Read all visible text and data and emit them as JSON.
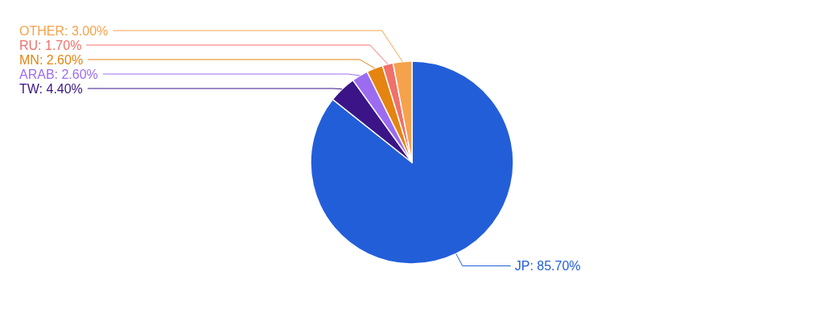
{
  "chart_data": {
    "type": "pie",
    "categories": [
      "JP: 85.70%",
      "TW: 4.40%",
      "ARAB: 2.60%",
      "MN: 2.60%",
      "RU: 1.70%",
      "OTHER: 3.00%"
    ],
    "values": [
      85.7,
      4.4,
      2.6,
      2.6,
      1.7,
      3.0
    ],
    "colors": [
      "#235ed9",
      "#3b1587",
      "#9c6cf0",
      "#e58410",
      "#f0706a",
      "#f5a24c"
    ]
  }
}
